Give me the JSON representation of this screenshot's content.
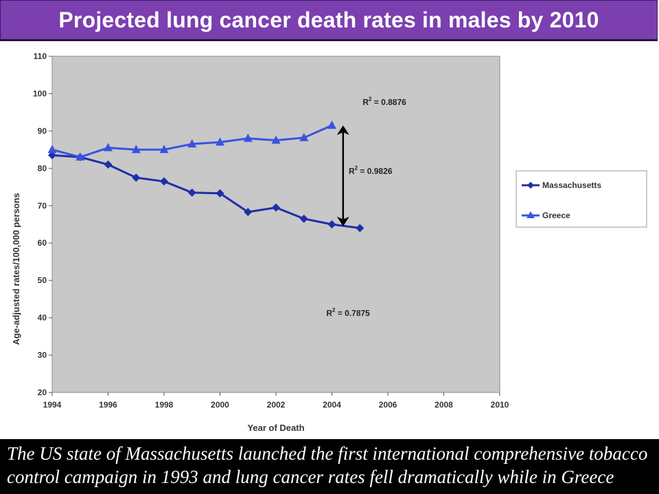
{
  "header": {
    "title": "Projected lung cancer death rates in males by 2010"
  },
  "caption": {
    "text": "The US state of Massachusetts launched the first international comprehensive tobacco control campaign in 1993 and lung cancer rates fell dramatically while in Greece"
  },
  "colors": {
    "header_bg": "#7b3fb0",
    "plot_bg": "#c8c8c8",
    "massachusetts": "#1f2fa8",
    "greece": "#3a52e0",
    "arrow": "#000000"
  },
  "chart_data": {
    "type": "line",
    "xlabel": "Year of Death",
    "ylabel": "Age-adjusted rates/100,000 persons",
    "xlim": [
      1994,
      2010
    ],
    "ylim": [
      20,
      110
    ],
    "xticks": [
      1994,
      1996,
      1998,
      2000,
      2002,
      2004,
      2006,
      2008,
      2010
    ],
    "yticks": [
      20,
      30,
      40,
      50,
      60,
      70,
      80,
      90,
      100,
      110
    ],
    "grid": false,
    "legend": "right",
    "series": [
      {
        "name": "Massachusetts",
        "marker": "diamond",
        "x": [
          1994,
          1995,
          1996,
          1997,
          1998,
          1999,
          2000,
          2001,
          2002,
          2003,
          2004,
          2005
        ],
        "values": [
          83.5,
          83.0,
          81.0,
          77.5,
          76.5,
          73.5,
          73.3,
          68.3,
          69.5,
          66.5,
          65.0,
          64.0
        ]
      },
      {
        "name": "Greece",
        "marker": "triangle",
        "x": [
          1994,
          1995,
          1996,
          1997,
          1998,
          1999,
          2000,
          2001,
          2002,
          2003,
          2004
        ],
        "values": [
          85.0,
          83.0,
          85.5,
          85.0,
          85.0,
          86.5,
          87.0,
          88.0,
          87.5,
          88.2,
          91.5
        ]
      }
    ],
    "annotations": [
      {
        "label": "R",
        "superscript": "2",
        "text": " = 0.8876",
        "x": 2005.1,
        "y": 97
      },
      {
        "label": "R",
        "superscript": "2",
        "text": " = 0.9826",
        "x": 2004.6,
        "y": 78.5
      },
      {
        "label": "R",
        "superscript": "2",
        "text": " = 0.7875",
        "x": 2003.8,
        "y": 40.5
      }
    ],
    "arrow": {
      "x": 2004.4,
      "y_from": 91.5,
      "y_to": 64.5
    }
  }
}
